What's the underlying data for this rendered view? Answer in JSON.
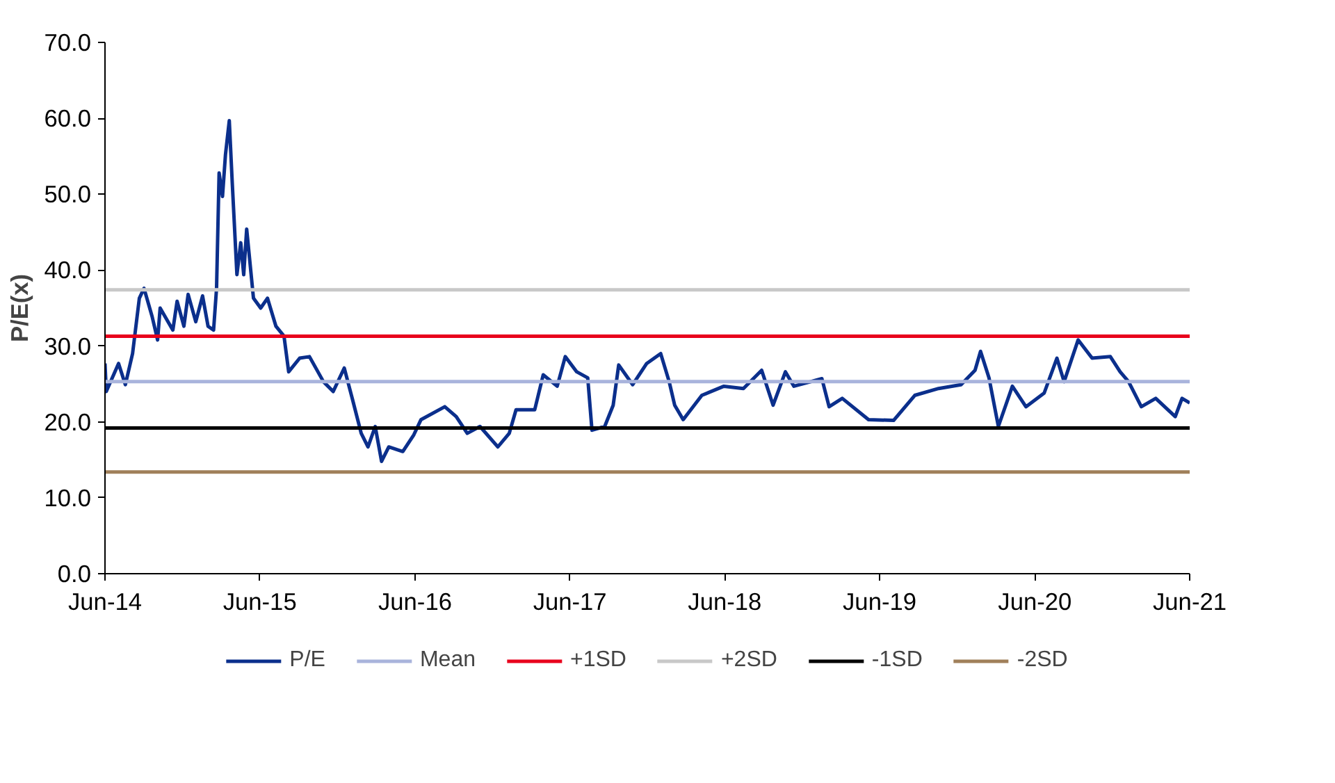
{
  "chart_data": {
    "type": "line",
    "ylabel": "P/E(x)",
    "xlim": [
      "2014-06-01",
      "2021-06-01"
    ],
    "xticks": [
      {
        "value": "2014-06-01",
        "label": "Jun-14"
      },
      {
        "value": "2015-06-01",
        "label": "Jun-15"
      },
      {
        "value": "2016-06-01",
        "label": "Jun-16"
      },
      {
        "value": "2017-06-01",
        "label": "Jun-17"
      },
      {
        "value": "2018-06-01",
        "label": "Jun-18"
      },
      {
        "value": "2019-06-01",
        "label": "Jun-19"
      },
      {
        "value": "2020-06-01",
        "label": "Jun-20"
      },
      {
        "value": "2021-06-01",
        "label": "Jun-21"
      }
    ],
    "ylim": [
      0,
      70
    ],
    "yticks": [
      {
        "value": 0,
        "label": "0.0"
      },
      {
        "value": 10,
        "label": "10.0"
      },
      {
        "value": 20,
        "label": "20.0"
      },
      {
        "value": 30,
        "label": "30.0"
      },
      {
        "value": 40,
        "label": "40.0"
      },
      {
        "value": 50,
        "label": "50.0"
      },
      {
        "value": 60,
        "label": "60.0"
      },
      {
        "value": 70,
        "label": "70.0"
      }
    ],
    "grid": false,
    "legend": "bottom",
    "marker": "none",
    "line_style": "solid",
    "series": [
      {
        "name": "P/E",
        "color": "#0b2f8c",
        "x": [
          "2014-06-01",
          "2014-06-04",
          "2014-07-03",
          "2014-07-19",
          "2014-08-05",
          "2014-08-21",
          "2014-09-01",
          "2014-09-20",
          "2014-10-03",
          "2014-10-09",
          "2014-11-08",
          "2014-11-18",
          "2014-12-04",
          "2014-12-14",
          "2015-01-01",
          "2015-01-17",
          "2015-01-30",
          "2015-02-12",
          "2015-02-19",
          "2015-02-25",
          "2015-03-05",
          "2015-03-12",
          "2015-03-21",
          "2015-03-28",
          "2015-04-08",
          "2015-04-17",
          "2015-04-24",
          "2015-05-01",
          "2015-05-17",
          "2015-06-03",
          "2015-06-19",
          "2015-07-09",
          "2015-07-28",
          "2015-08-08",
          "2015-09-03",
          "2015-09-26",
          "2015-10-29",
          "2015-11-21",
          "2015-12-17",
          "2016-01-03",
          "2016-01-26",
          "2016-02-11",
          "2016-02-28",
          "2016-03-14",
          "2016-03-31",
          "2016-05-03",
          "2016-05-29",
          "2016-06-15",
          "2016-08-10",
          "2016-09-06",
          "2016-10-02",
          "2016-11-01",
          "2016-12-13",
          "2017-01-09",
          "2017-01-25",
          "2017-03-10",
          "2017-03-30",
          "2017-05-02",
          "2017-05-21",
          "2017-06-17",
          "2017-07-13",
          "2017-07-23",
          "2017-08-22",
          "2017-09-11",
          "2017-09-24",
          "2017-10-27",
          "2017-11-29",
          "2018-01-01",
          "2018-01-21",
          "2018-02-03",
          "2018-02-23",
          "2018-04-08",
          "2018-05-30",
          "2018-07-15",
          "2018-08-27",
          "2018-09-23",
          "2018-10-22",
          "2018-11-11",
          "2019-01-16",
          "2019-02-02",
          "2019-03-05",
          "2019-05-06",
          "2019-07-04",
          "2019-08-23",
          "2019-10-18",
          "2019-12-10",
          "2020-01-12",
          "2020-01-25",
          "2020-02-14",
          "2020-03-07",
          "2020-04-09",
          "2020-05-11",
          "2020-06-23",
          "2020-07-23",
          "2020-08-09",
          "2020-09-11",
          "2020-10-14",
          "2020-11-26",
          "2020-12-19",
          "2021-01-08",
          "2021-02-07",
          "2021-03-13",
          "2021-04-28",
          "2021-05-14",
          "2021-06-01"
        ],
        "values": [
          27.7,
          24.0,
          27.7,
          24.9,
          29.0,
          36.3,
          37.6,
          33.9,
          30.8,
          35.0,
          32.1,
          35.9,
          32.6,
          36.8,
          33.2,
          36.6,
          32.6,
          32.1,
          37.6,
          52.8,
          49.7,
          55.2,
          59.7,
          51.5,
          39.4,
          43.6,
          39.4,
          45.4,
          36.3,
          35.0,
          36.3,
          32.6,
          31.3,
          26.6,
          28.4,
          28.6,
          25.3,
          24.0,
          27.1,
          23.5,
          18.5,
          16.7,
          19.4,
          14.8,
          16.7,
          16.1,
          18.3,
          20.3,
          22.0,
          20.7,
          18.5,
          19.4,
          16.7,
          18.5,
          21.6,
          21.6,
          26.2,
          24.7,
          28.6,
          26.6,
          25.8,
          18.9,
          19.4,
          22.2,
          27.5,
          24.9,
          27.7,
          29.0,
          25.3,
          22.2,
          20.3,
          23.5,
          24.7,
          24.4,
          26.8,
          22.2,
          26.6,
          24.7,
          25.7,
          22.0,
          23.1,
          20.3,
          20.2,
          23.5,
          24.4,
          24.9,
          26.8,
          29.3,
          25.8,
          19.4,
          24.7,
          22.0,
          23.8,
          28.4,
          25.3,
          30.8,
          28.4,
          28.6,
          26.6,
          25.3,
          22.0,
          23.1,
          20.7,
          23.1,
          22.5
        ]
      },
      {
        "name": "Mean",
        "color": "#a9b4dc",
        "x": [
          "2014-06-01",
          "2021-06-01"
        ],
        "values": [
          25.3,
          25.3
        ]
      },
      {
        "name": "+1SD",
        "color": "#e8001c",
        "x": [
          "2014-06-01",
          "2021-06-01"
        ],
        "values": [
          31.3,
          31.3
        ]
      },
      {
        "name": "+2SD",
        "color": "#c8c8c8",
        "x": [
          "2014-06-01",
          "2021-06-01"
        ],
        "values": [
          37.4,
          37.4
        ]
      },
      {
        "name": "-1SD",
        "color": "#000000",
        "x": [
          "2014-06-01",
          "2021-06-01"
        ],
        "values": [
          19.2,
          19.2
        ]
      },
      {
        "name": "-2SD",
        "color": "#a0805a",
        "x": [
          "2014-06-01",
          "2021-06-01"
        ],
        "values": [
          13.4,
          13.4
        ]
      }
    ]
  }
}
